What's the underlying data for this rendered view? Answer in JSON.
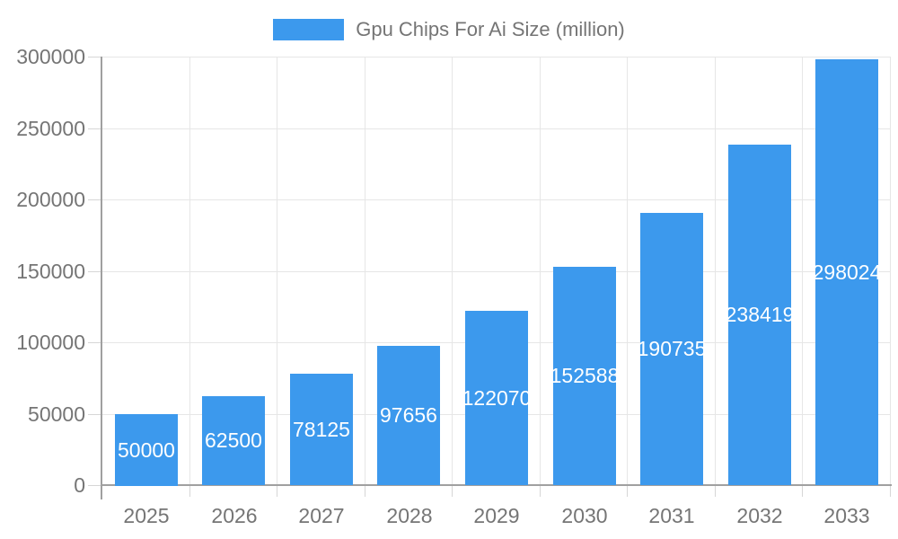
{
  "chart_data": {
    "type": "bar",
    "title": "Gpu Chips For Ai Size (million)",
    "legend": {
      "position": "top",
      "entries": [
        "Gpu Chips For Ai Size (million)"
      ]
    },
    "categories": [
      "2025",
      "2026",
      "2027",
      "2028",
      "2029",
      "2030",
      "2031",
      "2032",
      "2033"
    ],
    "series": [
      {
        "name": "Gpu Chips For Ai Size (million)",
        "values": [
          50000,
          62500,
          78125,
          97656,
          122070,
          152588,
          190735,
          238419,
          298024
        ]
      }
    ],
    "data_labels_shown": true,
    "xlabel": "",
    "ylabel": "",
    "ylim": [
      0,
      300000
    ],
    "yticks": [
      0,
      50000,
      100000,
      150000,
      200000,
      250000,
      300000
    ],
    "grid": true,
    "colors": {
      "bar": "#3c99ed",
      "bar_label_text": "#ffffff",
      "axis_text": "#757575",
      "axis_line": "#a0a0a0",
      "gridline": "#e6e6e6",
      "tick": "#d6d6d6",
      "background": "#ffffff"
    }
  }
}
